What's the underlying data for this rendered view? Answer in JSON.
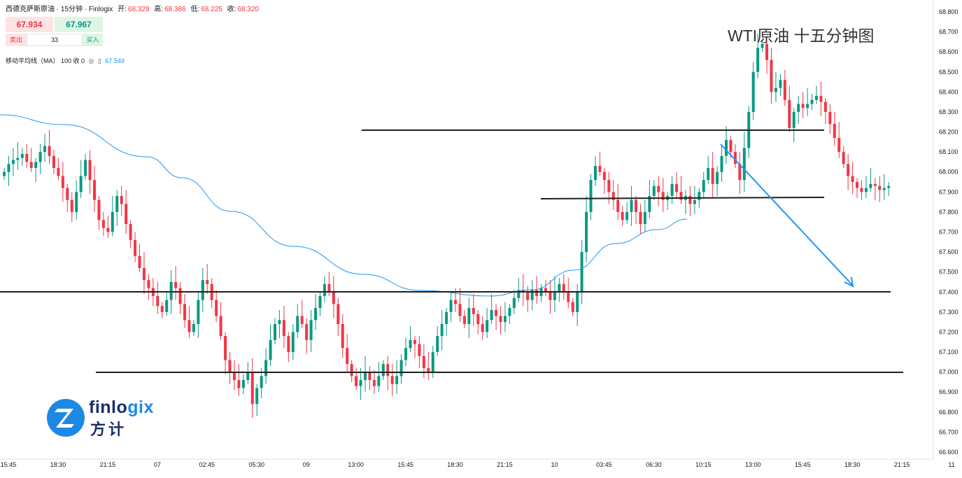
{
  "header": {
    "symbol": "西德克萨斯原油 · 15分钟 · Finlogix",
    "open_label": "开:",
    "open": "68.329",
    "high_label": "高:",
    "high": "68.386",
    "low_label": "低:",
    "low": "68.225",
    "close_label": "收:",
    "close": "68.320"
  },
  "quote": {
    "sell_price": "67.934",
    "buy_price": "67.967",
    "sell_label": "卖出",
    "buy_label": "买入",
    "spread": "33"
  },
  "indicator": {
    "label": "移动平均线（MA） 100 收 0",
    "value": "67.549"
  },
  "annotation_title": "WTI原油  十五分钟图",
  "logo": {
    "brand_en_a": "finlo",
    "brand_en_b": "gix",
    "brand_cn": "方计"
  },
  "colors": {
    "up": "#089981",
    "down": "#f23645",
    "ma": "#2196f3",
    "level": "#1f1f1f",
    "arrow": "#2196f3"
  },
  "chart_data": {
    "type": "candlestick",
    "ylim": [
      66.6,
      68.88
    ],
    "y_ticks": [
      "68.800",
      "68.700",
      "68.600",
      "68.500",
      "68.400",
      "68.300",
      "68.200",
      "68.100",
      "68.000",
      "67.900",
      "67.800",
      "67.700",
      "67.600",
      "67.500",
      "67.400",
      "67.300",
      "67.200",
      "67.100",
      "67.000",
      "66.900",
      "66.800",
      "66.700",
      "66.600"
    ],
    "x_ticks": [
      {
        "label": "15:45",
        "i": 0
      },
      {
        "label": "18:30",
        "i": 11
      },
      {
        "label": "21:15",
        "i": 22
      },
      {
        "label": "07",
        "i": 33
      },
      {
        "label": "02:45",
        "i": 44
      },
      {
        "label": "05:30",
        "i": 55
      },
      {
        "label": "09",
        "i": 66
      },
      {
        "label": "13:00",
        "i": 77
      },
      {
        "label": "15:45",
        "i": 88
      },
      {
        "label": "18:30",
        "i": 99
      },
      {
        "label": "21:15",
        "i": 110
      },
      {
        "label": "10",
        "i": 121
      },
      {
        "label": "03:45",
        "i": 132
      },
      {
        "label": "06:30",
        "i": 143
      },
      {
        "label": "10:15",
        "i": 154
      },
      {
        "label": "13:00",
        "i": 165
      },
      {
        "label": "15:45",
        "i": 176
      },
      {
        "label": "18:30",
        "i": 187
      },
      {
        "label": "21:15",
        "i": 198
      },
      {
        "label": "11",
        "i": 209
      }
    ],
    "closes": [
      68.0,
      68.04,
      68.06,
      68.07,
      68.09,
      68.05,
      68.02,
      68.05,
      68.1,
      68.13,
      68.08,
      68.02,
      67.98,
      67.92,
      67.86,
      67.8,
      67.9,
      67.98,
      68.06,
      67.96,
      67.86,
      67.76,
      67.72,
      67.7,
      67.8,
      67.88,
      67.84,
      67.74,
      67.66,
      67.58,
      67.52,
      67.46,
      67.42,
      67.38,
      67.33,
      67.3,
      67.36,
      67.45,
      67.42,
      67.34,
      67.26,
      67.2,
      67.24,
      67.36,
      67.46,
      67.44,
      67.36,
      67.28,
      67.18,
      67.06,
      67.0,
      66.96,
      66.92,
      66.96,
      67.0,
      66.84,
      66.92,
      66.98,
      67.06,
      67.16,
      67.24,
      67.26,
      67.18,
      67.1,
      67.2,
      67.28,
      67.24,
      67.16,
      67.26,
      67.32,
      67.38,
      67.44,
      67.4,
      67.34,
      67.24,
      67.12,
      67.04,
      66.98,
      66.93,
      66.96,
      67.0,
      66.96,
      66.93,
      66.98,
      67.04,
      66.98,
      66.94,
      66.98,
      67.06,
      67.12,
      67.16,
      67.14,
      67.08,
      67.02,
      67.0,
      67.1,
      67.18,
      67.24,
      67.3,
      67.36,
      67.34,
      67.28,
      67.24,
      67.32,
      67.29,
      67.24,
      67.2,
      67.26,
      67.31,
      67.28,
      67.25,
      67.28,
      67.32,
      67.37,
      67.41,
      67.4,
      67.36,
      67.41,
      67.38,
      67.42,
      67.4,
      67.36,
      67.4,
      67.44,
      67.4,
      67.35,
      67.3,
      67.4,
      67.6,
      67.8,
      67.96,
      68.03,
      68.0,
      67.96,
      67.9,
      67.86,
      67.8,
      67.76,
      67.8,
      67.86,
      67.8,
      67.74,
      67.8,
      67.88,
      67.93,
      67.9,
      67.86,
      67.88,
      67.94,
      67.9,
      67.86,
      67.88,
      67.84,
      67.86,
      67.9,
      67.96,
      68.02,
      67.94,
      68.0,
      68.08,
      68.16,
      68.1,
      68.04,
      67.96,
      68.12,
      68.3,
      68.5,
      68.62,
      68.64,
      68.56,
      68.4,
      68.42,
      68.46,
      68.36,
      68.22,
      68.3,
      68.34,
      68.32,
      68.34,
      68.36,
      68.38,
      68.35,
      68.3,
      68.24,
      68.17,
      68.1,
      68.04,
      67.98,
      67.95,
      67.92,
      67.9,
      67.92,
      67.94,
      67.93,
      67.91,
      67.92,
      67.93
    ]
  }
}
